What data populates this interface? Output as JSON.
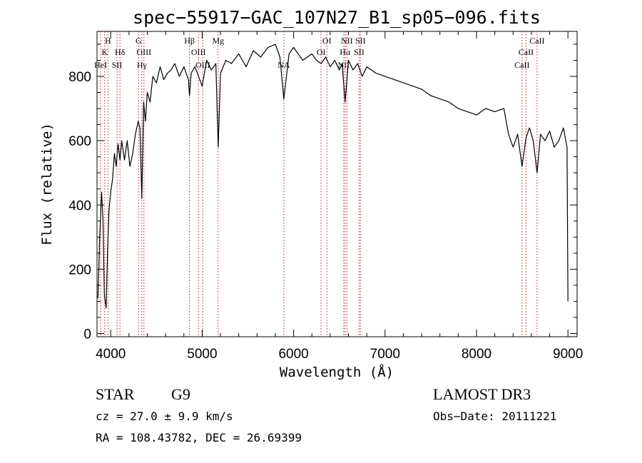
{
  "chart_data": {
    "type": "line",
    "title": "spec−55917−GAC_107N27_B1_sp05−096.fits",
    "xlabel": "Wavelength (Å)",
    "ylabel": "Flux (relative)",
    "xlim": [
      3850,
      9100
    ],
    "ylim": [
      -10,
      940
    ],
    "xticks": [
      4000,
      5000,
      6000,
      7000,
      8000,
      9000
    ],
    "yticks": [
      0,
      200,
      400,
      600,
      800
    ],
    "grid": false,
    "series": [
      {
        "x": [
          3860,
          3880,
          3900,
          3915,
          3930,
          3950,
          3965,
          3980,
          4000,
          4020,
          4040,
          4060,
          4080,
          4101,
          4120,
          4150,
          4180,
          4210,
          4240,
          4270,
          4300,
          4320,
          4340,
          4360,
          4380,
          4400,
          4430,
          4460,
          4500,
          4540,
          4580,
          4620,
          4660,
          4700,
          4750,
          4800,
          4850,
          4861,
          4880,
          4920,
          4960,
          5000,
          5050,
          5100,
          5150,
          5175,
          5200,
          5260,
          5320,
          5400,
          5480,
          5560,
          5640,
          5720,
          5800,
          5850,
          5893,
          5950,
          6000,
          6050,
          6100,
          6150,
          6200,
          6250,
          6300,
          6350,
          6400,
          6450,
          6500,
          6530,
          6563,
          6600,
          6650,
          6700,
          6750,
          6800,
          6900,
          7000,
          7100,
          7200,
          7300,
          7400,
          7500,
          7600,
          7700,
          7800,
          7900,
          8000,
          8100,
          8200,
          8300,
          8350,
          8400,
          8450,
          8498,
          8542,
          8580,
          8620,
          8662,
          8700,
          8750,
          8800,
          8850,
          8900,
          8950,
          8990,
          9000
        ],
        "y": [
          110,
          300,
          440,
          360,
          120,
          80,
          250,
          380,
          440,
          480,
          560,
          520,
          590,
          540,
          600,
          540,
          600,
          520,
          560,
          620,
          660,
          640,
          420,
          720,
          660,
          750,
          720,
          800,
          780,
          830,
          790,
          810,
          820,
          840,
          800,
          830,
          790,
          740,
          810,
          830,
          800,
          770,
          850,
          820,
          840,
          580,
          810,
          850,
          840,
          870,
          830,
          880,
          860,
          890,
          900,
          860,
          730,
          870,
          890,
          870,
          850,
          860,
          870,
          850,
          840,
          860,
          830,
          850,
          820,
          840,
          720,
          850,
          820,
          840,
          800,
          830,
          810,
          800,
          790,
          780,
          770,
          760,
          740,
          730,
          720,
          700,
          690,
          680,
          700,
          690,
          700,
          620,
          580,
          620,
          520,
          610,
          640,
          600,
          500,
          620,
          600,
          630,
          580,
          600,
          640,
          580,
          100
        ]
      }
    ],
    "line_color": "#000000",
    "marker_color": "#b22222",
    "line_markers": [
      {
        "wl": 3889,
        "label": "HeI",
        "row": 3
      },
      {
        "wl": 3934,
        "label": "K",
        "row": 2
      },
      {
        "wl": 3970,
        "label": "H",
        "row": 1
      },
      {
        "wl": 4068,
        "label": "SII",
        "row": 3
      },
      {
        "wl": 4101,
        "label": "Hδ",
        "row": 2
      },
      {
        "wl": 4305,
        "label": "G",
        "row": 1
      },
      {
        "wl": 4340,
        "label": "Hγ",
        "row": 3
      },
      {
        "wl": 4363,
        "label": "OIII",
        "row": 2
      },
      {
        "wl": 4861,
        "label": "Hβ",
        "row": 1
      },
      {
        "wl": 4959,
        "label": "OIII",
        "row": 2
      },
      {
        "wl": 5007,
        "label": "OIII",
        "row": 3
      },
      {
        "wl": 5175,
        "label": "Mg",
        "row": 1
      },
      {
        "wl": 5893,
        "label": "NA",
        "row": 3
      },
      {
        "wl": 6300,
        "label": "OI",
        "row": 2
      },
      {
        "wl": 6364,
        "label": "OI",
        "row": 1
      },
      {
        "wl": 6548,
        "label": "NII",
        "row": 3
      },
      {
        "wl": 6563,
        "label": "Hα",
        "row": 2
      },
      {
        "wl": 6583,
        "label": "NII",
        "row": 1
      },
      {
        "wl": 6717,
        "label": "SII",
        "row": 2
      },
      {
        "wl": 6731,
        "label": "SII",
        "row": 1
      },
      {
        "wl": 8498,
        "label": "CaII",
        "row": 3
      },
      {
        "wl": 8542,
        "label": "CaII",
        "row": 2
      },
      {
        "wl": 8662,
        "label": "CaII",
        "row": 1
      }
    ]
  },
  "info": {
    "object_class": "STAR",
    "subclass": "G9",
    "survey": "LAMOST DR3",
    "cz": "cz = 27.0 ± 9.9 km/s",
    "obs_date": "Obs−Date: 20111221",
    "coords": "RA = 108.43782, DEC =  26.69399"
  }
}
